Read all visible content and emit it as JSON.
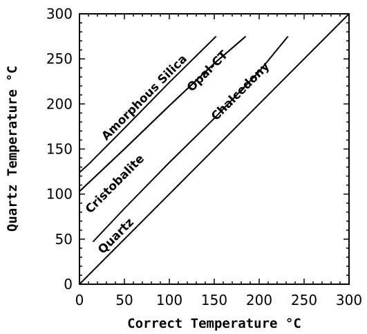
{
  "chart_data": {
    "type": "line",
    "title": "",
    "xlabel": "Correct Temperature °C",
    "ylabel": "Quartz Temperature °C",
    "xlim": [
      0,
      300
    ],
    "ylim": [
      0,
      300
    ],
    "xticks": [
      "0",
      "50",
      "100",
      "150",
      "200",
      "250",
      "300"
    ],
    "yticks": [
      "0",
      "50",
      "100",
      "150",
      "200",
      "250",
      "300"
    ],
    "grid": false,
    "legend": "none",
    "line_color": "#000000",
    "series": [
      {
        "name": "Amorphous Silica",
        "x": [
          0,
          10,
          50,
          100,
          152
        ],
        "y": [
          124,
          133,
          173,
          224,
          275
        ]
      },
      {
        "name": "Opal-CT",
        "x": [
          0,
          50,
          100,
          150,
          185
        ],
        "y": [
          103,
          150,
          198,
          245,
          275
        ]
      },
      {
        "name": "Cristobalite",
        "x": [
          0,
          50,
          100,
          150,
          185
        ],
        "y": [
          103,
          150,
          198,
          245,
          275
        ]
      },
      {
        "name": "Chalcedony",
        "x": [
          15,
          50,
          100,
          150,
          200,
          232
        ],
        "y": [
          47,
          84,
          135,
          184,
          236,
          275
        ]
      },
      {
        "name": "Quartz",
        "x": [
          0,
          100,
          200,
          300
        ],
        "y": [
          0,
          100,
          200,
          300
        ]
      }
    ],
    "annotations": [
      {
        "text": "Amorphous Silica",
        "x": 30,
        "y": 159
      },
      {
        "text": "Opal-CT",
        "x": 125,
        "y": 213
      },
      {
        "text": "Cristobalite",
        "x": 12,
        "y": 78
      },
      {
        "text": "Quartz",
        "x": 26,
        "y": 33
      },
      {
        "text": "Chalcedony",
        "x": 152,
        "y": 181
      }
    ]
  }
}
